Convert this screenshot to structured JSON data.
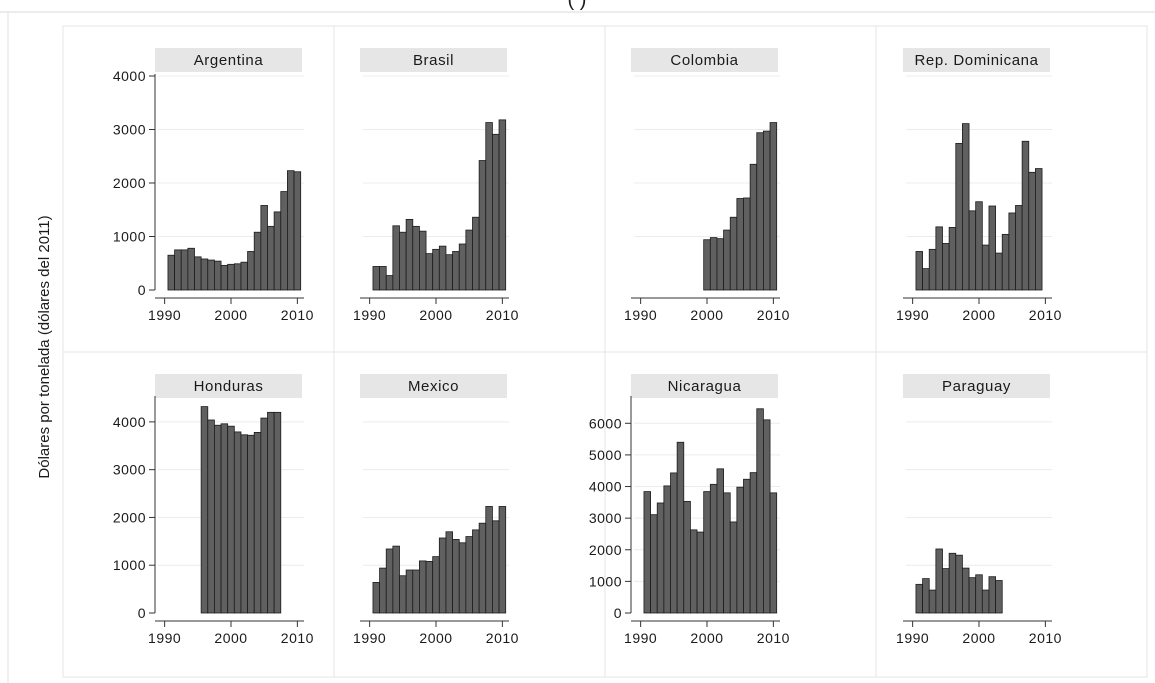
{
  "header": {
    "cropped_title": "(        )"
  },
  "chart_data": {
    "type": "bar",
    "layout": "small-multiples",
    "ylabel": "Dólares por tonelada (dólares del 2011)",
    "xlabel": "",
    "x_ticks": [
      1990,
      2000,
      2010
    ],
    "xlim": [
      1989,
      2011
    ],
    "grid": true,
    "colors": {
      "bar": "#606060",
      "bar_edge": "#1c1c1c",
      "strip": "#e6e6e6",
      "grid": "#ececec",
      "cell_border": "#e4e4e4"
    },
    "panels": [
      {
        "name": "Argentina",
        "ylim": [
          0,
          4000
        ],
        "y_ticks": [
          0,
          1000,
          2000,
          3000,
          4000
        ],
        "show_y_axis": true,
        "x": [
          1991,
          1992,
          1993,
          1994,
          1995,
          1996,
          1997,
          1998,
          1999,
          2000,
          2001,
          2002,
          2003,
          2004,
          2005,
          2006,
          2007,
          2008,
          2009,
          2010
        ],
        "values": [
          650,
          750,
          750,
          780,
          620,
          580,
          560,
          540,
          460,
          480,
          490,
          520,
          720,
          1080,
          1580,
          1190,
          1460,
          1840,
          2230,
          2210
        ]
      },
      {
        "name": "Brasil",
        "ylim": [
          0,
          4000
        ],
        "y_ticks": [
          0,
          1000,
          2000,
          3000,
          4000
        ],
        "show_y_axis": false,
        "x": [
          1991,
          1992,
          1993,
          1994,
          1995,
          1996,
          1997,
          1998,
          1999,
          2000,
          2001,
          2002,
          2003,
          2004,
          2005,
          2006,
          2007,
          2008,
          2009,
          2010
        ],
        "values": [
          440,
          440,
          270,
          1200,
          1080,
          1320,
          1190,
          1100,
          680,
          760,
          820,
          660,
          720,
          860,
          1120,
          1360,
          2420,
          3130,
          2910,
          3180
        ]
      },
      {
        "name": "Colombia",
        "ylim": [
          0,
          4000
        ],
        "y_ticks": [
          0,
          1000,
          2000,
          3000,
          4000
        ],
        "show_y_axis": false,
        "x": [
          2000,
          2001,
          2002,
          2003,
          2004,
          2005,
          2006,
          2007,
          2008,
          2009,
          2010
        ],
        "values": [
          940,
          980,
          960,
          1120,
          1360,
          1710,
          1720,
          2350,
          2940,
          2970,
          3130
        ]
      },
      {
        "name": "Rep. Dominicana",
        "ylim": [
          0,
          4000
        ],
        "y_ticks": [
          0,
          1000,
          2000,
          3000,
          4000
        ],
        "show_y_axis": false,
        "x": [
          1991,
          1992,
          1993,
          1994,
          1995,
          1996,
          1997,
          1998,
          1999,
          2000,
          2001,
          2002,
          2003,
          2004,
          2005,
          2006,
          2007,
          2008,
          2009
        ],
        "values": [
          720,
          400,
          760,
          1180,
          870,
          1170,
          2740,
          3110,
          1480,
          1650,
          840,
          1570,
          690,
          1040,
          1440,
          1580,
          2780,
          2200,
          2270
        ]
      },
      {
        "name": "Honduras",
        "ylim": [
          0,
          4500
        ],
        "y_ticks": [
          0,
          1000,
          2000,
          3000,
          4000
        ],
        "show_y_axis": true,
        "x": [
          1996,
          1997,
          1998,
          1999,
          2000,
          2001,
          2002,
          2003,
          2004,
          2005,
          2006,
          2007
        ],
        "values": [
          4320,
          4040,
          3930,
          3960,
          3910,
          3790,
          3730,
          3720,
          3780,
          4080,
          4200,
          4200
        ]
      },
      {
        "name": "Mexico",
        "ylim": [
          0,
          4500
        ],
        "y_ticks": [
          0,
          1000,
          2000,
          3000,
          4000
        ],
        "show_y_axis": false,
        "x": [
          1991,
          1992,
          1993,
          1994,
          1995,
          1996,
          1997,
          1998,
          1999,
          2000,
          2001,
          2002,
          2003,
          2004,
          2005,
          2006,
          2007,
          2008,
          2009,
          2010
        ],
        "values": [
          640,
          940,
          1340,
          1400,
          780,
          900,
          900,
          1090,
          1080,
          1180,
          1570,
          1700,
          1540,
          1470,
          1600,
          1740,
          1880,
          2230,
          1930,
          2230
        ]
      },
      {
        "name": "Nicaragua",
        "ylim": [
          0,
          6800
        ],
        "y_ticks": [
          0,
          1000,
          2000,
          3000,
          4000,
          5000,
          6000
        ],
        "show_y_axis": true,
        "x": [
          1991,
          1992,
          1993,
          1994,
          1995,
          1996,
          1997,
          1998,
          1999,
          2000,
          2001,
          2002,
          2003,
          2004,
          2005,
          2006,
          2007,
          2008,
          2009,
          2010
        ],
        "values": [
          3840,
          3110,
          3480,
          4020,
          4430,
          5400,
          3530,
          2630,
          2560,
          3840,
          4070,
          4560,
          3800,
          2880,
          3980,
          4230,
          4440,
          6460,
          6110,
          3800
        ]
      },
      {
        "name": "Paraguay",
        "ylim": [
          0,
          4500
        ],
        "y_ticks": [
          0,
          1000,
          2000,
          3000,
          4000
        ],
        "show_y_axis": false,
        "x": [
          1991,
          1992,
          1993,
          1994,
          1995,
          1996,
          1997,
          1998,
          1999,
          2000,
          2001,
          2002,
          2003
        ],
        "values": [
          600,
          720,
          480,
          1340,
          930,
          1250,
          1210,
          940,
          740,
          800,
          480,
          760,
          680
        ]
      }
    ]
  }
}
